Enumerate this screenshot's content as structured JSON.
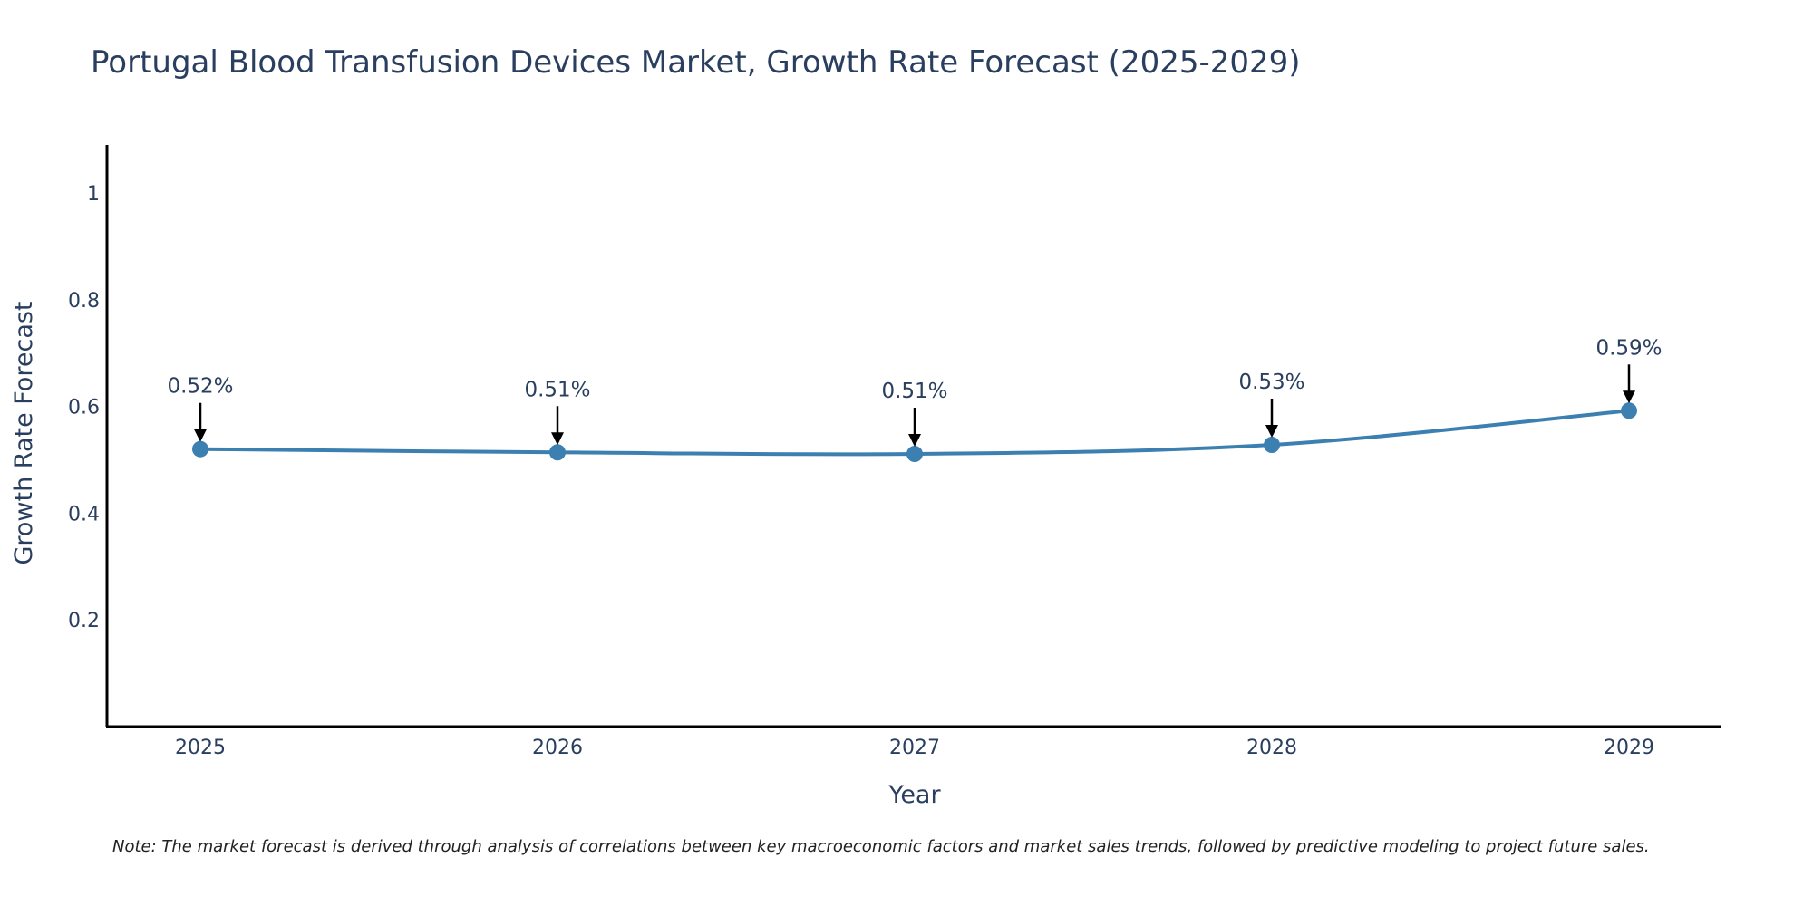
{
  "chart_data": {
    "type": "line",
    "title": "Portugal Blood Transfusion Devices Market, Growth Rate Forecast (2025-2029)",
    "xlabel": "Year",
    "ylabel": "Growth Rate Forecast",
    "categories": [
      "2025",
      "2026",
      "2027",
      "2028",
      "2029"
    ],
    "series": [
      {
        "name": "Growth Rate Forecast",
        "values": [
          0.52,
          0.514,
          0.511,
          0.528,
          0.592
        ],
        "labels": [
          "0.52%",
          "0.51%",
          "0.51%",
          "0.53%",
          "0.59%"
        ]
      }
    ],
    "yticks": [
      "0.2",
      "0.4",
      "0.6",
      "0.8",
      "1"
    ],
    "ylim": [
      0,
      1.1
    ],
    "grid": false,
    "line_color": "#3c7fb1",
    "marker_color": "#3c7fb1",
    "arrow_color": "#000000",
    "note": "Note: The market forecast is derived through analysis of correlations between key macroeconomic factors and market sales trends, followed by predictive modeling to project future sales."
  }
}
